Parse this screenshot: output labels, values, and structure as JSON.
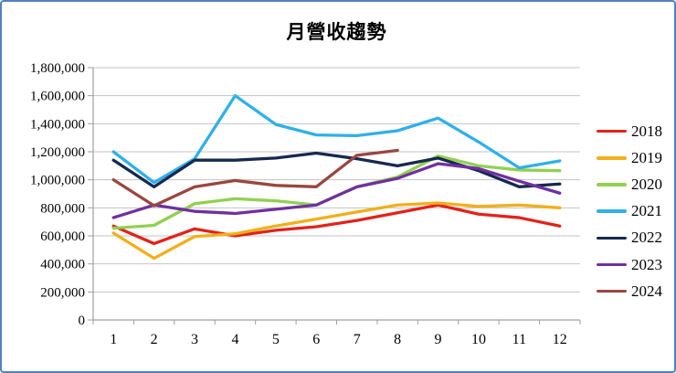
{
  "frame": {
    "border_color": "#4f81bd",
    "background_color": "#ffffff",
    "grid_color": "#c3c3c3",
    "axis_color": "#9f9f9f",
    "text_color": "#000000"
  },
  "chart_data": {
    "type": "line",
    "title": "月營收趨勢",
    "categories": [
      "1",
      "2",
      "3",
      "4",
      "5",
      "6",
      "7",
      "8",
      "9",
      "10",
      "11",
      "12"
    ],
    "series": [
      {
        "name": "2018",
        "color": "#e2231a",
        "values": [
          670000,
          545000,
          650000,
          600000,
          640000,
          665000,
          710000,
          765000,
          820000,
          755000,
          730000,
          670000
        ]
      },
      {
        "name": "2019",
        "color": "#f2af19",
        "values": [
          620000,
          440000,
          595000,
          615000,
          670000,
          720000,
          770000,
          820000,
          835000,
          810000,
          820000,
          800000
        ]
      },
      {
        "name": "2020",
        "color": "#92d050",
        "values": [
          655000,
          675000,
          830000,
          865000,
          850000,
          820000,
          950000,
          1020000,
          1170000,
          1100000,
          1070000,
          1065000
        ]
      },
      {
        "name": "2021",
        "color": "#2fb0e8",
        "values": [
          1200000,
          980000,
          1150000,
          1600000,
          1395000,
          1320000,
          1315000,
          1350000,
          1440000,
          1270000,
          1085000,
          1135000
        ]
      },
      {
        "name": "2022",
        "color": "#16294f",
        "values": [
          1140000,
          950000,
          1140000,
          1140000,
          1155000,
          1190000,
          1150000,
          1100000,
          1155000,
          1065000,
          950000,
          970000
        ]
      },
      {
        "name": "2023",
        "color": "#7030a0",
        "values": [
          730000,
          820000,
          775000,
          760000,
          790000,
          820000,
          950000,
          1010000,
          1115000,
          1080000,
          990000,
          905000
        ]
      },
      {
        "name": "2024",
        "color": "#984740",
        "values": [
          1000000,
          815000,
          950000,
          995000,
          960000,
          950000,
          1175000,
          1210000
        ]
      }
    ],
    "xlabel": "",
    "ylabel": "",
    "ylim": [
      0,
      1800000
    ],
    "ytick_step": 200000,
    "ytick_labels": [
      "0",
      "200,000",
      "400,000",
      "600,000",
      "800,000",
      "1,000,000",
      "1,200,000",
      "1,400,000",
      "1,600,000",
      "1,800,000"
    ],
    "grid": "horizontal-only",
    "legend_position": "right"
  }
}
